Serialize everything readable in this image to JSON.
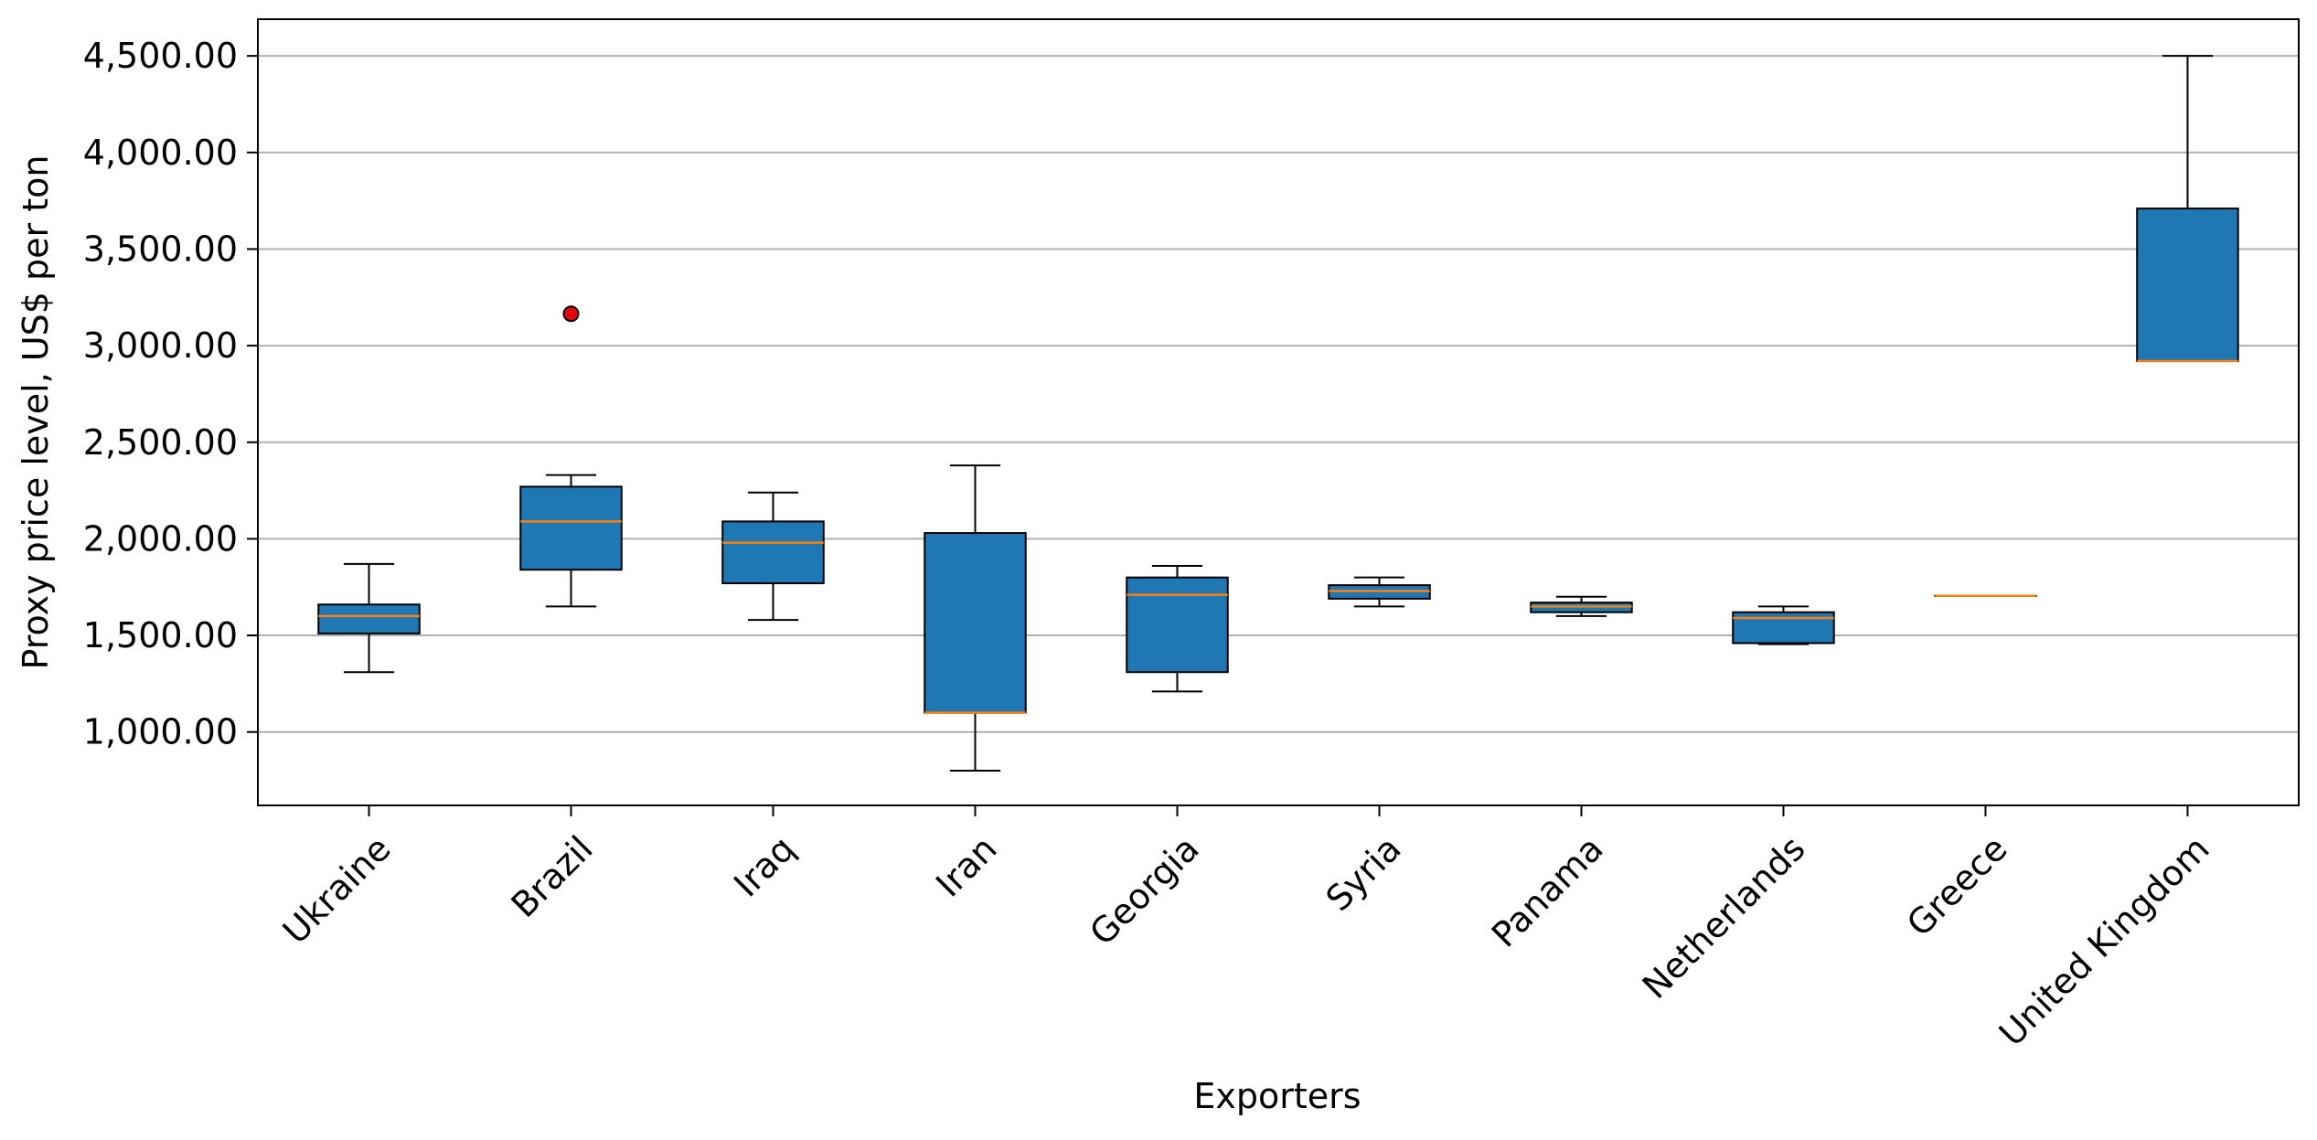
{
  "chart_data": {
    "type": "box",
    "title": "",
    "xlabel": "Exporters",
    "ylabel": "Proxy price level, US$ per ton",
    "ylim": [
      620,
      4690
    ],
    "yticks": [
      1000,
      1500,
      2000,
      2500,
      3000,
      3500,
      4000,
      4500
    ],
    "ytick_labels": [
      "1,000.00",
      "1,500.00",
      "2,000.00",
      "2,500.00",
      "3,000.00",
      "3,500.00",
      "4,000.00",
      "4,500.00"
    ],
    "grid": "horizontal",
    "box_color": "#1f77b4",
    "median_color": "#ff7f0e",
    "outlier_color": "#e3000f",
    "categories": [
      "Ukraine",
      "Brazil",
      "Iraq",
      "Iran",
      "Georgia",
      "Syria",
      "Panama",
      "Netherlands",
      "Greece",
      "United Kingdom"
    ],
    "boxes": [
      {
        "whisker_low": 1310,
        "q1": 1510,
        "median": 1600,
        "q3": 1660,
        "whisker_high": 1870,
        "outliers": []
      },
      {
        "whisker_low": 1650,
        "q1": 1840,
        "median": 2090,
        "q3": 2270,
        "whisker_high": 2330,
        "outliers": [
          3165
        ]
      },
      {
        "whisker_low": 1580,
        "q1": 1770,
        "median": 1980,
        "q3": 2090,
        "whisker_high": 2240,
        "outliers": []
      },
      {
        "whisker_low": 800,
        "q1": 1100,
        "median": 1100,
        "q3": 2030,
        "whisker_high": 2380,
        "outliers": []
      },
      {
        "whisker_low": 1210,
        "q1": 1310,
        "median": 1710,
        "q3": 1800,
        "whisker_high": 1860,
        "outliers": []
      },
      {
        "whisker_low": 1650,
        "q1": 1690,
        "median": 1730,
        "q3": 1760,
        "whisker_high": 1800,
        "outliers": []
      },
      {
        "whisker_low": 1600,
        "q1": 1620,
        "median": 1650,
        "q3": 1670,
        "whisker_high": 1700,
        "outliers": []
      },
      {
        "whisker_low": 1455,
        "q1": 1460,
        "median": 1590,
        "q3": 1620,
        "whisker_high": 1650,
        "outliers": []
      },
      {
        "whisker_low": 1705,
        "q1": 1705,
        "median": 1705,
        "q3": 1705,
        "whisker_high": 1705,
        "outliers": []
      },
      {
        "whisker_low": 2920,
        "q1": 2920,
        "median": 2920,
        "q3": 3710,
        "whisker_high": 4500,
        "outliers": []
      }
    ]
  }
}
